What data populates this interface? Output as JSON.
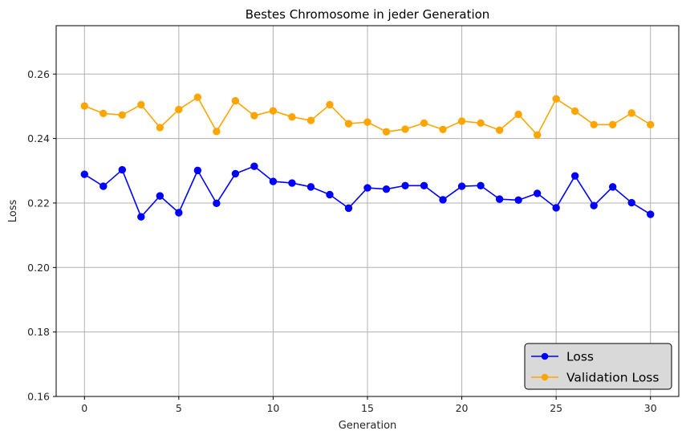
{
  "chart_data": {
    "type": "line",
    "title": "Bestes Chromosome in jeder Generation",
    "xlabel": "Generation",
    "ylabel": "Loss",
    "xlim": [
      -1.5,
      31.5
    ],
    "ylim": [
      0.16,
      0.275
    ],
    "xticks": [
      0,
      5,
      10,
      15,
      20,
      25,
      30
    ],
    "yticks": [
      0.16,
      0.18,
      0.2,
      0.22,
      0.24,
      0.26
    ],
    "ytick_labels": [
      "0.16",
      "0.18",
      "0.20",
      "0.22",
      "0.24",
      "0.26"
    ],
    "grid": true,
    "legend_position": "lower-right",
    "x": [
      0,
      1,
      2,
      3,
      4,
      5,
      6,
      7,
      8,
      9,
      10,
      11,
      12,
      13,
      14,
      15,
      16,
      17,
      18,
      19,
      20,
      21,
      22,
      23,
      24,
      25,
      26,
      27,
      28,
      29,
      30
    ],
    "series": [
      {
        "name": "Loss",
        "color": "#0000ff",
        "marker": "circle",
        "values": [
          0.2289,
          0.2252,
          0.2303,
          0.2157,
          0.2222,
          0.217,
          0.2301,
          0.2199,
          0.2291,
          0.2314,
          0.2267,
          0.2262,
          0.225,
          0.2226,
          0.2184,
          0.2247,
          0.2243,
          0.2254,
          0.2254,
          0.221,
          0.2252,
          0.2254,
          0.2212,
          0.2209,
          0.223,
          0.2185,
          0.2284,
          0.2192,
          0.225,
          0.2201,
          0.2165
        ]
      },
      {
        "name": "Validation Loss",
        "color": "#ffa500",
        "marker": "circle",
        "values": [
          0.2501,
          0.2478,
          0.2473,
          0.2505,
          0.2434,
          0.249,
          0.2528,
          0.2422,
          0.2517,
          0.2471,
          0.2486,
          0.2467,
          0.2456,
          0.2505,
          0.2446,
          0.2451,
          0.2421,
          0.2429,
          0.2448,
          0.2428,
          0.2454,
          0.2448,
          0.2426,
          0.2475,
          0.2411,
          0.2523,
          0.2485,
          0.2443,
          0.2443,
          0.2479,
          0.2443
        ]
      }
    ]
  }
}
